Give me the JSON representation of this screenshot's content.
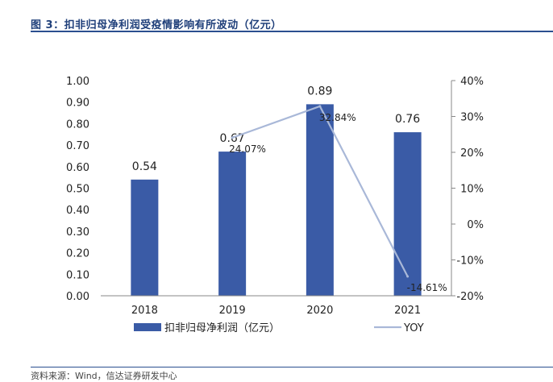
{
  "figure": {
    "title": "图 3：扣非归母净利润受疫情影响有所波动（亿元）",
    "source": "资料来源：Wind，信达证券研发中心"
  },
  "colors": {
    "bar": "#3a5ba6",
    "line": "#a9b8d8",
    "rule": "#2b4f8f",
    "title": "#1f3f7a"
  },
  "chart_data": {
    "type": "bar",
    "categories": [
      "2018",
      "2019",
      "2020",
      "2021"
    ],
    "series": [
      {
        "name": "扣非归母净利润（亿元）",
        "type": "bar",
        "axis": "left",
        "values": [
          0.54,
          0.67,
          0.89,
          0.76
        ],
        "labels": [
          "0.54",
          "0.67",
          "0.89",
          "0.76"
        ]
      },
      {
        "name": "YOY",
        "type": "line",
        "axis": "right",
        "values": [
          null,
          24.07,
          32.84,
          -14.61
        ],
        "labels": [
          "",
          "24.07%",
          "32.84%",
          "-14.61%"
        ]
      }
    ],
    "y_left": {
      "min": 0,
      "max": 1,
      "ticks": [
        "0.00",
        "0.10",
        "0.20",
        "0.30",
        "0.40",
        "0.50",
        "0.60",
        "0.70",
        "0.80",
        "0.90",
        "1.00"
      ]
    },
    "y_right": {
      "min": -20,
      "max": 40,
      "ticks": [
        "-20%",
        "-10%",
        "0%",
        "10%",
        "20%",
        "30%",
        "40%"
      ]
    },
    "grid": false,
    "legend": "bottom"
  }
}
